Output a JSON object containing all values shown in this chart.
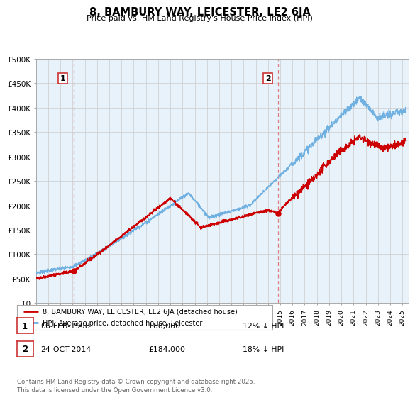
{
  "title": "8, BAMBURY WAY, LEICESTER, LE2 6JA",
  "subtitle": "Price paid vs. HM Land Registry's House Price Index (HPI)",
  "ylim": [
    0,
    500000
  ],
  "yticks": [
    0,
    50000,
    100000,
    150000,
    200000,
    250000,
    300000,
    350000,
    400000,
    450000,
    500000
  ],
  "ytick_labels": [
    "£0",
    "£50K",
    "£100K",
    "£150K",
    "£200K",
    "£250K",
    "£300K",
    "£350K",
    "£400K",
    "£450K",
    "£500K"
  ],
  "hpi_color": "#6aaee0",
  "price_color": "#cc0000",
  "dashed_line_color": "#dd6666",
  "bg_color": "#e8f2fb",
  "grid_color": "#cccccc",
  "legend_border_color": "#aaaaaa",
  "annotation_border_color": "#cc3333",
  "legend_entries": [
    {
      "label": "8, BAMBURY WAY, LEICESTER, LE2 6JA (detached house)",
      "color": "#cc0000"
    },
    {
      "label": "HPI: Average price, detached house, Leicester",
      "color": "#6aaee0"
    }
  ],
  "table_entries": [
    {
      "num": "1",
      "date": "06-FEB-1998",
      "price": "£66,000",
      "hpi": "12% ↓ HPI"
    },
    {
      "num": "2",
      "date": "24-OCT-2014",
      "price": "£184,000",
      "hpi": "18% ↓ HPI"
    }
  ],
  "footer": "Contains HM Land Registry data © Crown copyright and database right 2025.\nThis data is licensed under the Open Government Licence v3.0.",
  "xmin": 1995,
  "xmax": 2025.5,
  "purchase1_x": 1998.09,
  "purchase1_y": 66000,
  "purchase2_x": 2014.81,
  "purchase2_y": 184000
}
